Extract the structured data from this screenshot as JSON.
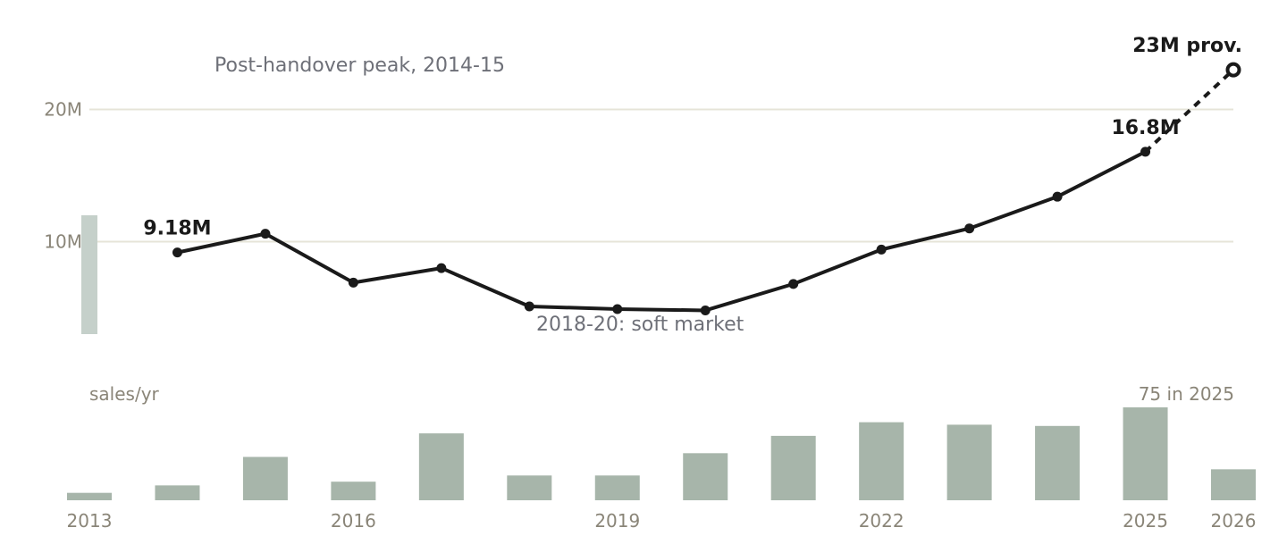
{
  "chart_data": {
    "type": "line",
    "x": [
      2014,
      2015,
      2016,
      2017,
      2018,
      2019,
      2020,
      2021,
      2022,
      2023,
      2024,
      2025,
      2026
    ],
    "series": [
      {
        "values": [
          9.18,
          10.6,
          6.9,
          8.0,
          5.1,
          4.9,
          4.8,
          6.8,
          9.4,
          11.0,
          13.4,
          16.8,
          23.0
        ],
        "provisional_from_index": 11
      }
    ],
    "y_ticks": [
      {
        "value": 10,
        "label": "10M"
      },
      {
        "value": 20,
        "label": "20M"
      }
    ],
    "ylim": [
      0,
      25
    ],
    "grid": true,
    "data_labels": [
      {
        "x": 2014,
        "text": "9.18M"
      },
      {
        "x": 2025,
        "text": "16.8M"
      },
      {
        "x": 2026,
        "text": "23M prov."
      }
    ],
    "annotations": {
      "peak": "Post-handover peak, 2014-15",
      "soft": "2018-20: soft market"
    },
    "bar_panel": {
      "type": "bar",
      "label": "sales/yr",
      "note": "75 in 2025",
      "x": [
        2013,
        2014,
        2015,
        2016,
        2017,
        2018,
        2019,
        2020,
        2021,
        2022,
        2023,
        2024,
        2025,
        2026
      ],
      "values": [
        6,
        12,
        35,
        15,
        54,
        20,
        20,
        38,
        52,
        63,
        61,
        60,
        75,
        25
      ],
      "ylim": [
        0,
        80
      ],
      "x_tick_labels": [
        {
          "x": 2013,
          "label": "2013"
        },
        {
          "x": 2016,
          "label": "2016"
        },
        {
          "x": 2019,
          "label": "2019"
        },
        {
          "x": 2022,
          "label": "2022"
        },
        {
          "x": 2025,
          "label": "2025"
        },
        {
          "x": 2026,
          "label": "2026"
        }
      ]
    },
    "colors": {
      "line": "#1a1a1a",
      "grid": "#e6e4d8",
      "bar": "#a7b5aa",
      "range_marker": "#c5d0ca",
      "tick_text": "#8a8578",
      "annotation_text": "#6e7078"
    }
  }
}
